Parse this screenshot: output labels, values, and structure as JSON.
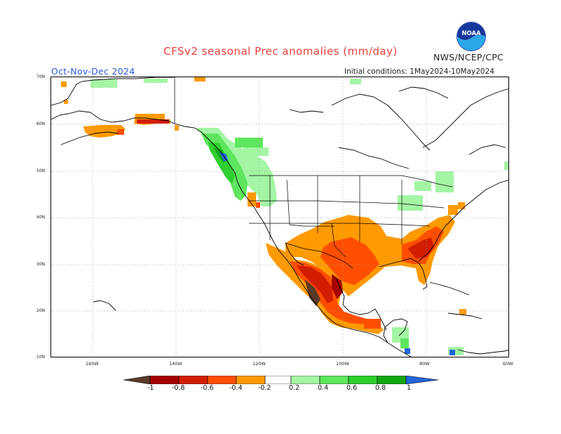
{
  "title": "CFSv2 seasonal Prec anomalies (mm/day)",
  "period": "Oct-Nov-Dec 2024",
  "initial_conditions": "Initial conditions: 1May2024-10May2024",
  "agency": "NWS/NCEP/CPC",
  "logo_text": "NOAA",
  "lat_labels": [
    "70N",
    "60N",
    "50N",
    "40N",
    "30N",
    "20N",
    "10N"
  ],
  "lon_labels": [
    "160W",
    "140W",
    "120W",
    "100W",
    "80W",
    "60W"
  ],
  "colorbar": {
    "labels": [
      "-1",
      "-0.8",
      "-0.6",
      "-0.4",
      "-0.2",
      "0.2",
      "0.4",
      "0.6",
      "0.8",
      "1"
    ],
    "colors": [
      "#5c3a28",
      "#a50000",
      "#d21e00",
      "#ff4e00",
      "#ff9a00",
      "#ffffff",
      "#a4f5a4",
      "#5ee65e",
      "#2fcf2f",
      "#11a711",
      "#2266dd"
    ]
  },
  "legend_colors": {
    "brown": "#5c3a28",
    "darkred": "#a50000",
    "red": "#d21e00",
    "redorange": "#ff4e00",
    "orange": "#ff9a00",
    "lightgreen": "#a4f5a4",
    "green": "#5ee65e",
    "mgreen": "#2fcf2f",
    "dgreen": "#11a711",
    "blue": "#2266dd"
  }
}
